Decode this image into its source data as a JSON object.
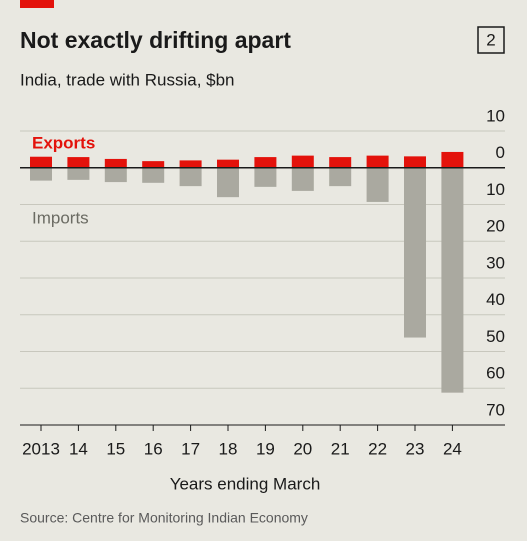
{
  "chart_data": {
    "type": "bar",
    "title": "Not exactly drifting apart",
    "badge": "2",
    "subtitle": "India, trade with Russia, $bn",
    "x_label": "Years ending March",
    "source": "Source: Centre for Monitoring Indian Economy",
    "categories": [
      "2013",
      "14",
      "15",
      "16",
      "17",
      "18",
      "19",
      "20",
      "21",
      "22",
      "23",
      "24"
    ],
    "series": [
      {
        "name": "Exports",
        "color": "#e3120b",
        "values": [
          3.0,
          2.9,
          2.4,
          1.8,
          2.0,
          2.2,
          2.9,
          3.3,
          2.9,
          3.3,
          3.1,
          4.3
        ]
      },
      {
        "name": "Imports",
        "color": "#aaa9a0",
        "values": [
          -3.5,
          -3.3,
          -3.9,
          -4.1,
          -5.0,
          -8.0,
          -5.2,
          -6.3,
          -5.0,
          -9.3,
          -46.2,
          -61.2
        ]
      }
    ],
    "ylim": [
      -70,
      10
    ],
    "yticks": [
      10,
      0,
      {
        "value": -10,
        "label": "10"
      },
      {
        "value": -20,
        "label": "20"
      },
      {
        "value": -30,
        "label": "30"
      },
      {
        "value": -40,
        "label": "40"
      },
      {
        "value": -50,
        "label": "50"
      },
      {
        "value": -60,
        "label": "60"
      },
      {
        "value": -70,
        "label": "70"
      }
    ],
    "grid": true
  }
}
